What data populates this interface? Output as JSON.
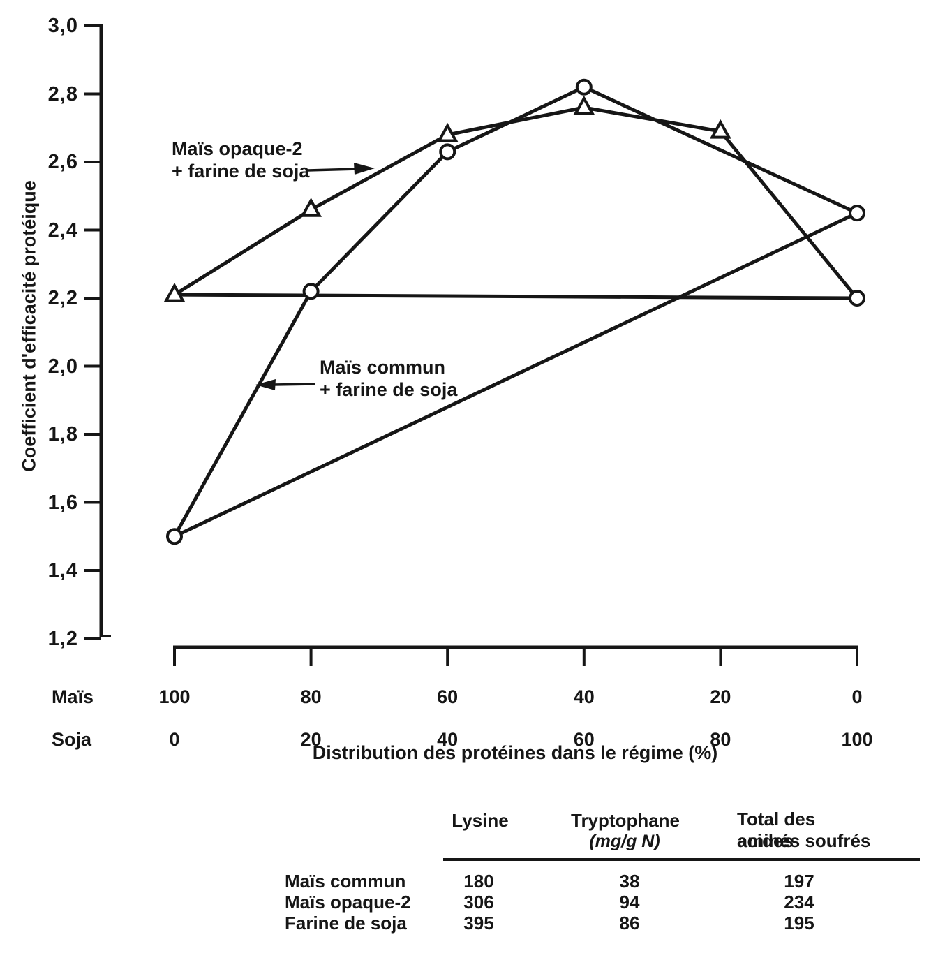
{
  "figure": {
    "ink_color": "#161616",
    "background_color": "#ffffff",
    "y_axis": {
      "title": "Coefficient d'efficacité protéique",
      "tick_labels": [
        "3,0",
        "2,8",
        "2,6",
        "2,4",
        "2,2",
        "2,0",
        "1,8",
        "1,6",
        "1,4",
        "1,2"
      ],
      "tick_values": [
        3.0,
        2.8,
        2.6,
        2.4,
        2.2,
        2.0,
        1.8,
        1.6,
        1.4,
        1.2
      ]
    },
    "x_axis": {
      "title": "Distribution des protéines dans le régime (%)",
      "row1_label": "Maïs",
      "row2_label": "Soja",
      "row1_values": [
        "100",
        "80",
        "60",
        "40",
        "20",
        "0"
      ],
      "row2_values": [
        "0",
        "20",
        "40",
        "60",
        "80",
        "100"
      ],
      "tick_mais_pct": [
        100,
        80,
        60,
        40,
        20,
        0
      ]
    },
    "annotations": [
      {
        "target": "courbe maïs opaque-2",
        "lines": [
          "Maïs opaque-2",
          "+ farine de soja"
        ],
        "arrow_direction": "right"
      },
      {
        "target": "courbe maïs commun",
        "lines": [
          "Maïs commun",
          "+ farine de soja"
        ],
        "arrow_direction": "left"
      }
    ]
  },
  "chart_data": {
    "type": "line",
    "title": "",
    "xlabel": "Distribution des protéines dans le régime (%)",
    "ylabel": "Coefficient d'efficacité protéique",
    "ylim": [
      1.2,
      3.0
    ],
    "x_axis_mais_pct": [
      100,
      80,
      60,
      40,
      20,
      0
    ],
    "x_axis_soja_pct": [
      0,
      20,
      40,
      60,
      80,
      100
    ],
    "grid": false,
    "legend_position": "annotations-on-plot",
    "series": [
      {
        "id": "mais-opaque2-plus-soja",
        "name": "Maïs opaque-2 + farine de soja",
        "marker": "triangle",
        "x_mais_pct": [
          100,
          80,
          60,
          40,
          20,
          0
        ],
        "values": [
          2.21,
          2.46,
          2.68,
          2.76,
          2.69,
          2.2
        ],
        "point_markers": [
          "triangle",
          "triangle",
          "triangle",
          "triangle",
          "triangle",
          "circle"
        ]
      },
      {
        "id": "mais-commun-plus-soja",
        "name": "Maïs commun + farine de soja",
        "marker": "circle",
        "x_mais_pct": [
          100,
          80,
          60,
          40,
          0
        ],
        "values": [
          1.5,
          2.22,
          2.63,
          2.82,
          2.45
        ],
        "point_markers": [
          "circle",
          "circle",
          "circle",
          "circle",
          "circle"
        ]
      },
      {
        "id": "horizontal-reference-line",
        "name": "",
        "marker": "none",
        "x_mais_pct": [
          100,
          0
        ],
        "values": [
          2.21,
          2.2
        ],
        "point_markers": [
          "none",
          "none"
        ]
      },
      {
        "id": "linear-mixture-line",
        "name": "",
        "marker": "none",
        "x_mais_pct": [
          100,
          0
        ],
        "values": [
          1.5,
          2.45
        ],
        "point_markers": [
          "none",
          "none"
        ]
      }
    ]
  },
  "table": {
    "header": {
      "col1": "Lysine",
      "col2": "Tryptophane",
      "col2_unit": "(mg/g N)",
      "col3_line1": "Total des acides",
      "col3_line2": "aminés soufrés"
    },
    "rows": [
      {
        "label": "Maïs commun",
        "lysine": "180",
        "tryptophane": "38",
        "soufres": "197"
      },
      {
        "label": "Maïs opaque-2",
        "lysine": "306",
        "tryptophane": "94",
        "soufres": "234"
      },
      {
        "label": "Farine de soja",
        "lysine": "395",
        "tryptophane": "86",
        "soufres": "195"
      }
    ]
  }
}
